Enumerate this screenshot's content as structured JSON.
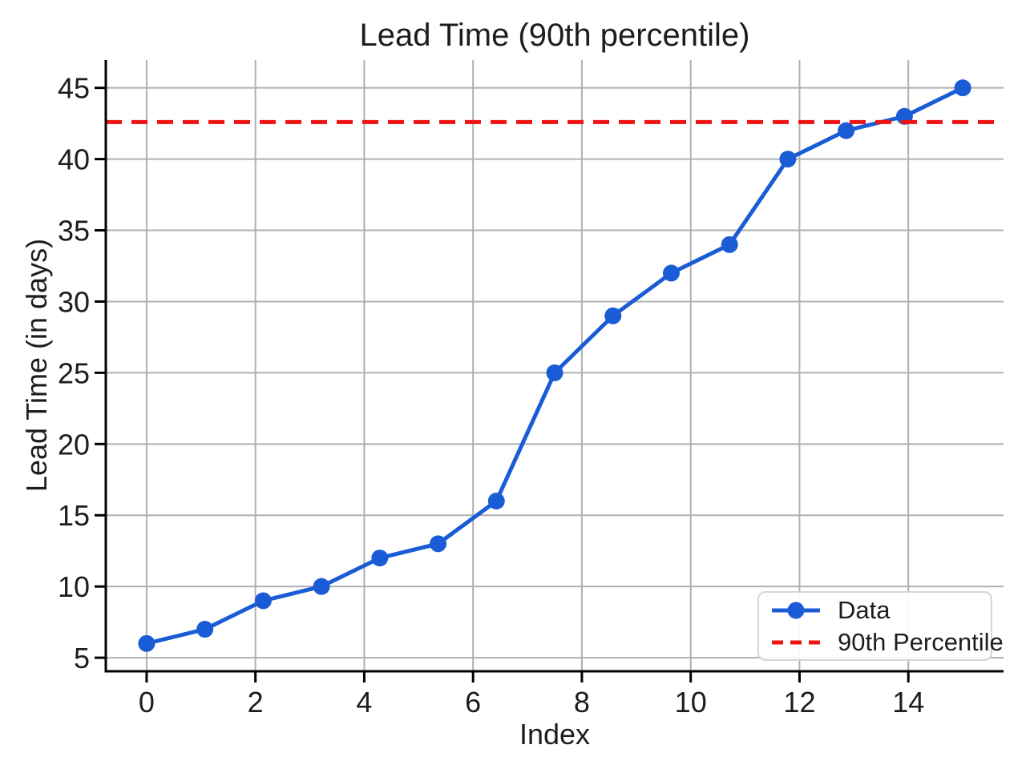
{
  "chart_data": {
    "type": "line",
    "title": "Lead Time (90th percentile)",
    "xlabel": "Index",
    "ylabel": "Lead Time (in days)",
    "x": [
      0,
      1.0714,
      2.1429,
      3.2143,
      4.2857,
      5.3571,
      6.4286,
      7.5,
      8.5714,
      9.6429,
      10.7143,
      11.7857,
      12.8571,
      13.9286,
      15
    ],
    "series": [
      {
        "name": "Data",
        "type": "line-markers",
        "color": "#1a5cd6",
        "values": [
          6,
          7,
          9,
          10,
          12,
          13,
          16,
          25,
          29,
          32,
          34,
          40,
          42,
          43,
          45
        ]
      },
      {
        "name": "90th Percentile",
        "type": "hline-dashed",
        "color": "#ee1212",
        "value": 42.6
      }
    ],
    "xticks": [
      0,
      2,
      4,
      6,
      8,
      10,
      12,
      14
    ],
    "yticks": [
      5,
      10,
      15,
      20,
      25,
      30,
      35,
      40,
      45
    ],
    "xlim": [
      -0.75,
      15.75
    ],
    "ylim": [
      4.05,
      46.95
    ],
    "grid": true,
    "grid_color": "#b0b0b0",
    "axis_color": "#000000",
    "text_color": "#1d1d1d",
    "legend_position": "lower right"
  }
}
